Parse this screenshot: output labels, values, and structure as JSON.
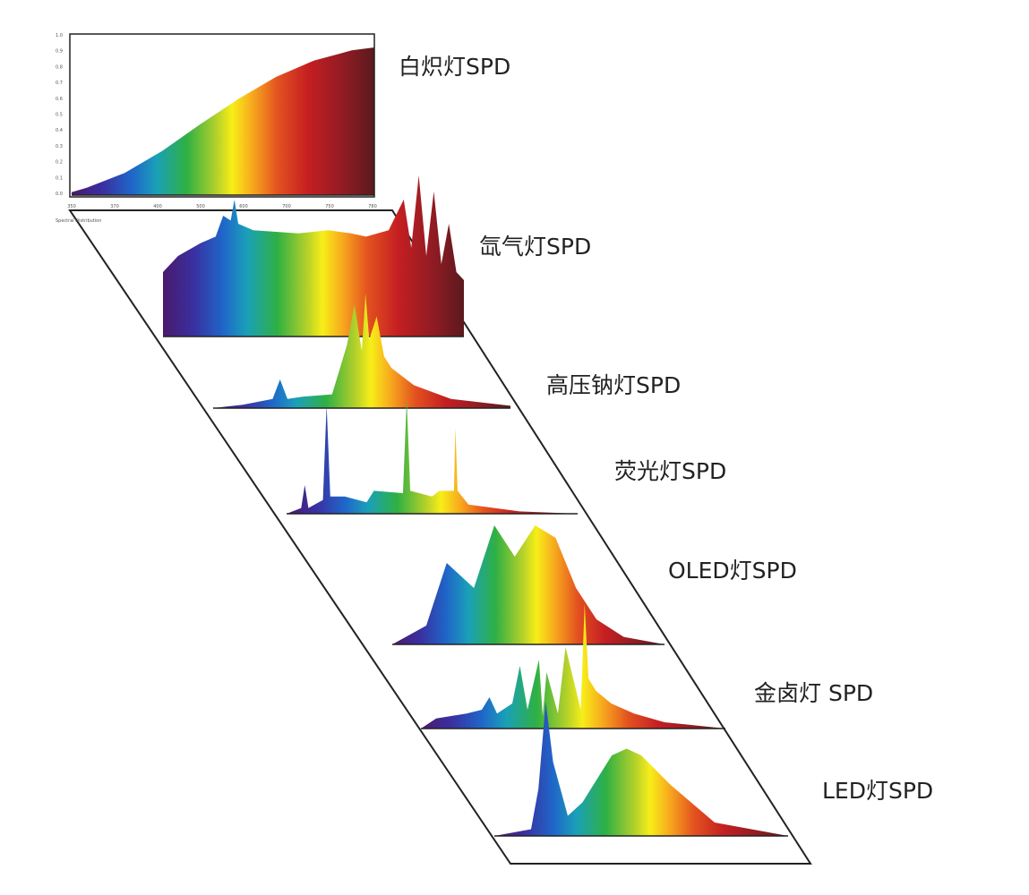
{
  "chart_data": [
    {
      "type": "area",
      "title": "白炽灯SPD",
      "x_tick_labels": [
        "350",
        "370",
        "400",
        "500",
        "600",
        "700",
        "750",
        "780"
      ],
      "y_tick_labels": [
        "1.0",
        "0.9",
        "0.8",
        "0.7",
        "0.6",
        "0.5",
        "0.4",
        "0.3",
        "0.2",
        "0.1",
        "0.0"
      ],
      "footnote": "Spectral Distribution",
      "xlim": [
        380,
        780
      ],
      "x": [
        380,
        400,
        450,
        500,
        550,
        600,
        650,
        700,
        750,
        780
      ],
      "values": [
        0.02,
        0.05,
        0.15,
        0.3,
        0.48,
        0.65,
        0.8,
        0.91,
        0.98,
        1.0
      ]
    },
    {
      "type": "area",
      "title": "氙气灯SPD",
      "xlim": [
        380,
        780
      ],
      "x": [
        380,
        400,
        430,
        450,
        460,
        470,
        475,
        480,
        490,
        500,
        530,
        560,
        600,
        630,
        650,
        680,
        700,
        710,
        720,
        730,
        740,
        750,
        760,
        770,
        780
      ],
      "values": [
        0.4,
        0.5,
        0.58,
        0.62,
        0.75,
        0.72,
        0.85,
        0.7,
        0.68,
        0.66,
        0.65,
        0.64,
        0.66,
        0.64,
        0.62,
        0.66,
        0.85,
        0.55,
        1.0,
        0.5,
        0.9,
        0.45,
        0.7,
        0.4,
        0.35
      ]
    },
    {
      "type": "area",
      "title": "高压钠灯SPD",
      "xlim": [
        380,
        780
      ],
      "x": [
        380,
        420,
        460,
        470,
        480,
        500,
        540,
        560,
        570,
        580,
        585,
        590,
        600,
        610,
        620,
        650,
        700,
        780
      ],
      "values": [
        0.0,
        0.03,
        0.08,
        0.25,
        0.08,
        0.1,
        0.12,
        0.55,
        0.9,
        0.5,
        1.0,
        0.6,
        0.8,
        0.45,
        0.35,
        0.2,
        0.08,
        0.02
      ]
    },
    {
      "type": "area",
      "title": "荧光灯SPD",
      "xlim": [
        380,
        780
      ],
      "x": [
        380,
        400,
        405,
        410,
        430,
        435,
        440,
        460,
        490,
        500,
        540,
        545,
        550,
        580,
        590,
        610,
        612,
        615,
        630,
        700,
        780
      ],
      "values": [
        0.0,
        0.05,
        0.25,
        0.05,
        0.12,
        0.95,
        0.15,
        0.15,
        0.1,
        0.2,
        0.18,
        1.0,
        0.2,
        0.15,
        0.2,
        0.2,
        0.75,
        0.2,
        0.08,
        0.02,
        0.0
      ]
    },
    {
      "type": "area",
      "title": "OLED灯SPD",
      "xlim": [
        380,
        780
      ],
      "x": [
        380,
        430,
        460,
        480,
        500,
        530,
        560,
        590,
        620,
        650,
        680,
        720,
        780
      ],
      "values": [
        0.0,
        0.15,
        0.65,
        0.55,
        0.45,
        0.95,
        0.7,
        0.95,
        0.85,
        0.45,
        0.2,
        0.06,
        0.0
      ]
    },
    {
      "type": "area",
      "title": "金卤灯 SPD",
      "xlim": [
        380,
        780
      ],
      "x": [
        380,
        400,
        420,
        440,
        460,
        470,
        480,
        500,
        510,
        520,
        535,
        540,
        545,
        560,
        570,
        590,
        595,
        600,
        610,
        630,
        660,
        700,
        780
      ],
      "values": [
        0.0,
        0.08,
        0.1,
        0.12,
        0.15,
        0.25,
        0.12,
        0.2,
        0.5,
        0.15,
        0.55,
        0.1,
        0.45,
        0.12,
        0.65,
        0.15,
        1.0,
        0.4,
        0.3,
        0.2,
        0.12,
        0.05,
        0.0
      ]
    },
    {
      "type": "area",
      "title": "LED灯SPD",
      "xlim": [
        380,
        780
      ],
      "x": [
        380,
        430,
        440,
        450,
        460,
        480,
        500,
        540,
        560,
        580,
        620,
        680,
        780
      ],
      "values": [
        0.0,
        0.05,
        0.35,
        1.0,
        0.55,
        0.15,
        0.25,
        0.6,
        0.65,
        0.6,
        0.38,
        0.1,
        0.0
      ]
    }
  ]
}
